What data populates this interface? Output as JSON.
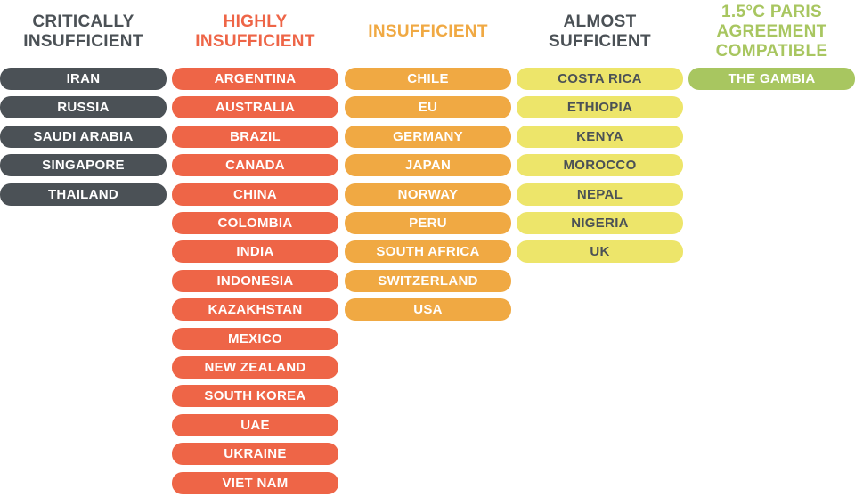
{
  "columns": [
    {
      "title": "CRITICALLY INSUFFICIENT",
      "items": [
        "IRAN",
        "RUSSIA",
        "SAUDI ARABIA",
        "SINGAPORE",
        "THAILAND"
      ]
    },
    {
      "title": "HIGHLY INSUFFICIENT",
      "items": [
        "ARGENTINA",
        "AUSTRALIA",
        "BRAZIL",
        "CANADA",
        "CHINA",
        "COLOMBIA",
        "INDIA",
        "INDONESIA",
        "KAZAKHSTAN",
        "MEXICO",
        "NEW ZEALAND",
        "SOUTH KOREA",
        "UAE",
        "UKRAINE",
        "VIET NAM"
      ]
    },
    {
      "title": "INSUFFICIENT",
      "items": [
        "CHILE",
        "EU",
        "GERMANY",
        "JAPAN",
        "NORWAY",
        "PERU",
        "SOUTH AFRICA",
        "SWITZERLAND",
        "USA"
      ]
    },
    {
      "title": "ALMOST SUFFICIENT",
      "items": [
        "COSTA RICA",
        "ETHIOPIA",
        "KENYA",
        "MOROCCO",
        "NEPAL",
        "NIGERIA",
        "UK"
      ]
    },
    {
      "title": "1.5°C PARIS AGREEMENT COMPATIBLE",
      "items": [
        "THE GAMBIA"
      ]
    }
  ]
}
